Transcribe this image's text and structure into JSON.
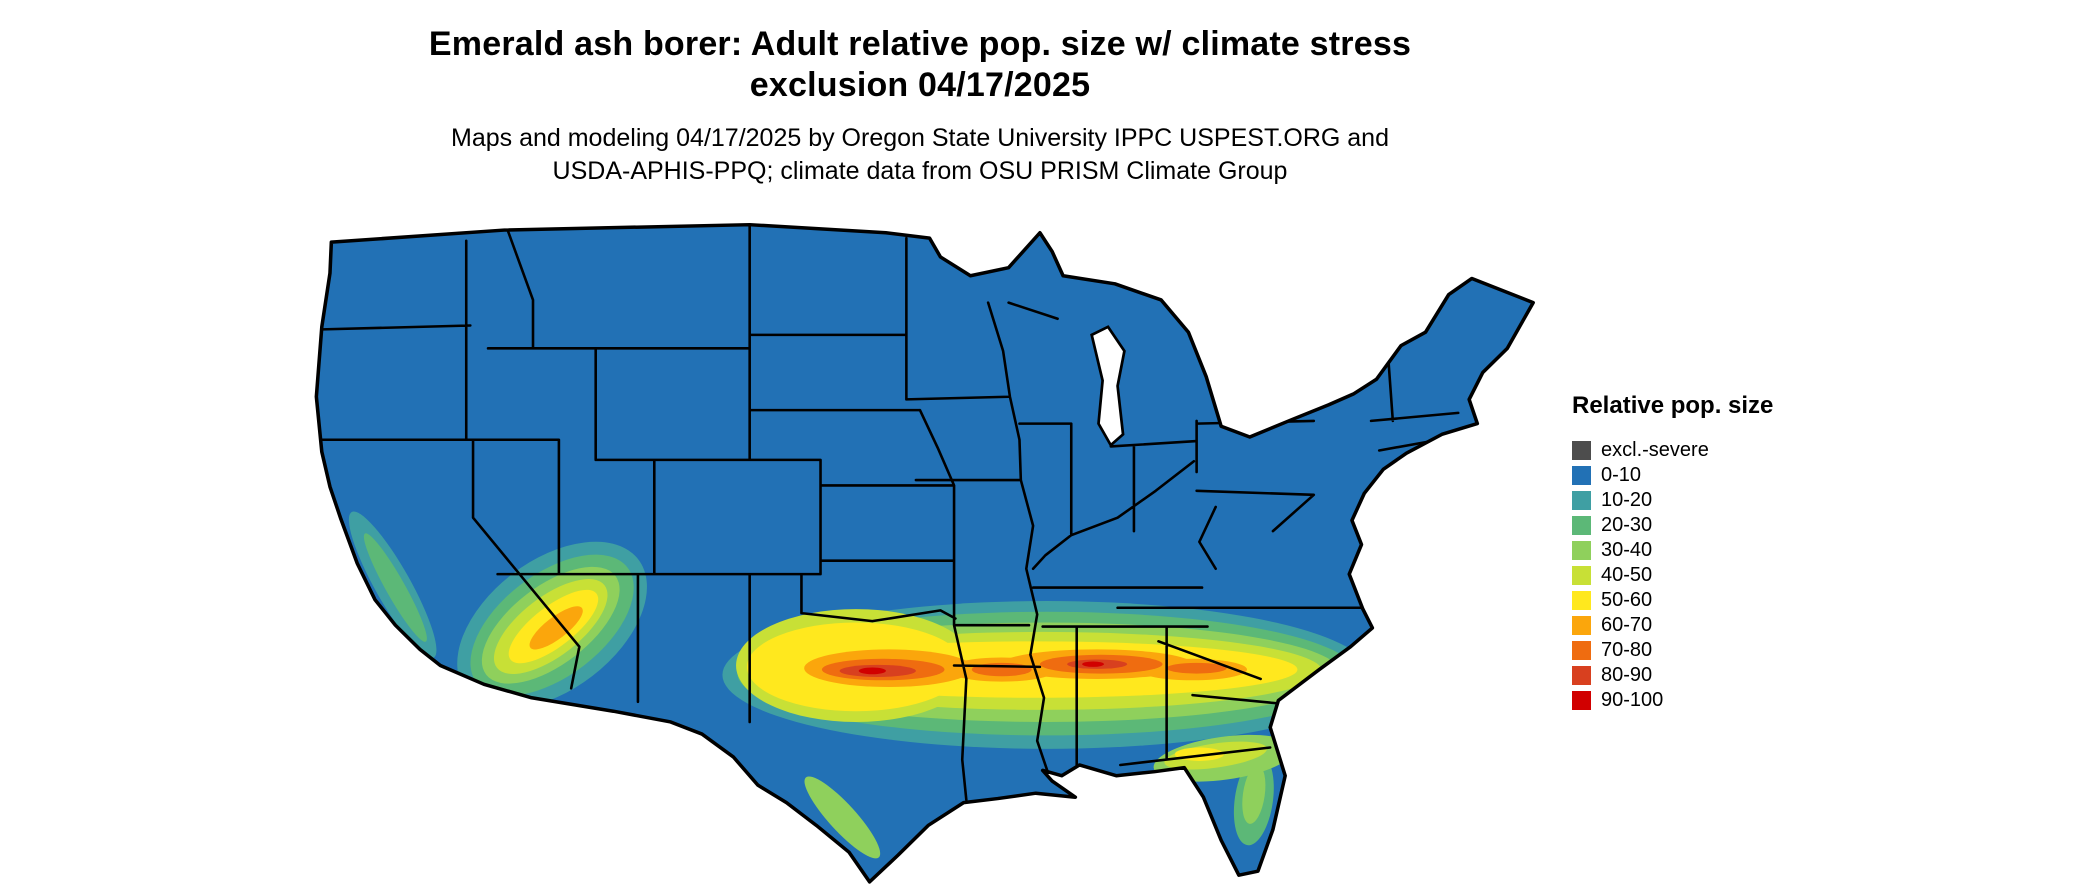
{
  "title": {
    "line1": "Emerald ash borer: Adult relative pop. size w/ climate stress",
    "line2": "exclusion 04/17/2025"
  },
  "subtitle": {
    "line1": "Maps and modeling 04/17/2025 by Oregon State University IPPC USPEST.ORG and",
    "line2": "USDA-APHIS-PPQ; climate data from OSU PRISM Climate Group"
  },
  "legend": {
    "title": "Relative pop. size",
    "items": [
      {
        "label": "excl.-severe",
        "color": "#4d4d4d"
      },
      {
        "label": "0-10",
        "color": "#2271b5"
      },
      {
        "label": "10-20",
        "color": "#3f9fa3"
      },
      {
        "label": "20-30",
        "color": "#5cb877"
      },
      {
        "label": "30-40",
        "color": "#8fd05c"
      },
      {
        "label": "40-50",
        "color": "#c8e036"
      },
      {
        "label": "50-60",
        "color": "#ffe81e"
      },
      {
        "label": "60-70",
        "color": "#fba60c"
      },
      {
        "label": "70-80",
        "color": "#ef6c10"
      },
      {
        "label": "80-90",
        "color": "#d8401f"
      },
      {
        "label": "90-100",
        "color": "#d10000"
      }
    ]
  },
  "map": {
    "region": "Continental United States",
    "base_color": "#2271b5",
    "border_color": "#000000",
    "background_color": "#ffffff",
    "lake_color": "#ffffff",
    "hot_zones": [
      "Elevated band (30-90) across the southern U.S. from central Texas through Louisiana, Mississippi, Alabama and Georgia to the South Carolina coastal plain",
      "Hottest core (70-100) through central Texas and southern Mississippi / Alabama / Georgia",
      "Moderate values (30-70) in southern California and western Arizona",
      "Low-moderate values (10-40) along the central California coast and across northern Florida",
      "Rest of the country predominantly 0-10 (blue)"
    ]
  }
}
